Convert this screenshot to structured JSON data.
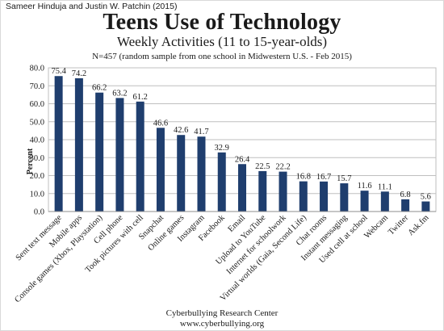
{
  "header": {
    "credit": "Sameer Hinduja and Justin W. Patchin (2015)"
  },
  "chart_data": {
    "type": "bar",
    "title": "Teens Use of Technology",
    "subtitle": "Weekly Activities (11 to 15-year-olds)",
    "note": "N=457 (random sample from one school in Midwestern U.S. - Feb 2015)",
    "xlabel": "",
    "ylabel": "Percent",
    "ylim": [
      0,
      80
    ],
    "yticks": [
      "0.0",
      "10.0",
      "20.0",
      "30.0",
      "40.0",
      "50.0",
      "60.0",
      "70.0",
      "80.0"
    ],
    "grid": true,
    "bar_color": "#1f3e6e",
    "categories": [
      "Sent text message",
      "Mobile apps",
      "Console games (Xbox, Playstation)",
      "Cell phone",
      "Took pictures with cell",
      "Snapchat",
      "Online games",
      "Instagram",
      "Facebook",
      "Email",
      "Upload to YouTube",
      "Internet for schoolwork",
      "Virtual worlds (Gaia, Second Life)",
      "Chat rooms",
      "Instant messaging",
      "Used cell at school",
      "Webcam",
      "Twitter",
      "Ask.fm"
    ],
    "values": [
      75.4,
      74.2,
      66.2,
      63.2,
      61.2,
      46.6,
      42.6,
      41.7,
      32.9,
      26.4,
      22.5,
      22.2,
      16.8,
      16.7,
      15.7,
      11.6,
      11.1,
      6.8,
      5.6
    ],
    "value_labels": [
      "75.4",
      "74.2",
      "66.2",
      "63.2",
      "61.2",
      "46.6",
      "42.6",
      "41.7",
      "32.9",
      "26.4",
      "22.5",
      "22.2",
      "16.8",
      "16.7",
      "15.7",
      "11.6",
      "11.1",
      "6.8",
      "5.6"
    ]
  },
  "footer": {
    "line1": "Cyberbullying Research Center",
    "line2": "www.cyberbullying.org"
  }
}
